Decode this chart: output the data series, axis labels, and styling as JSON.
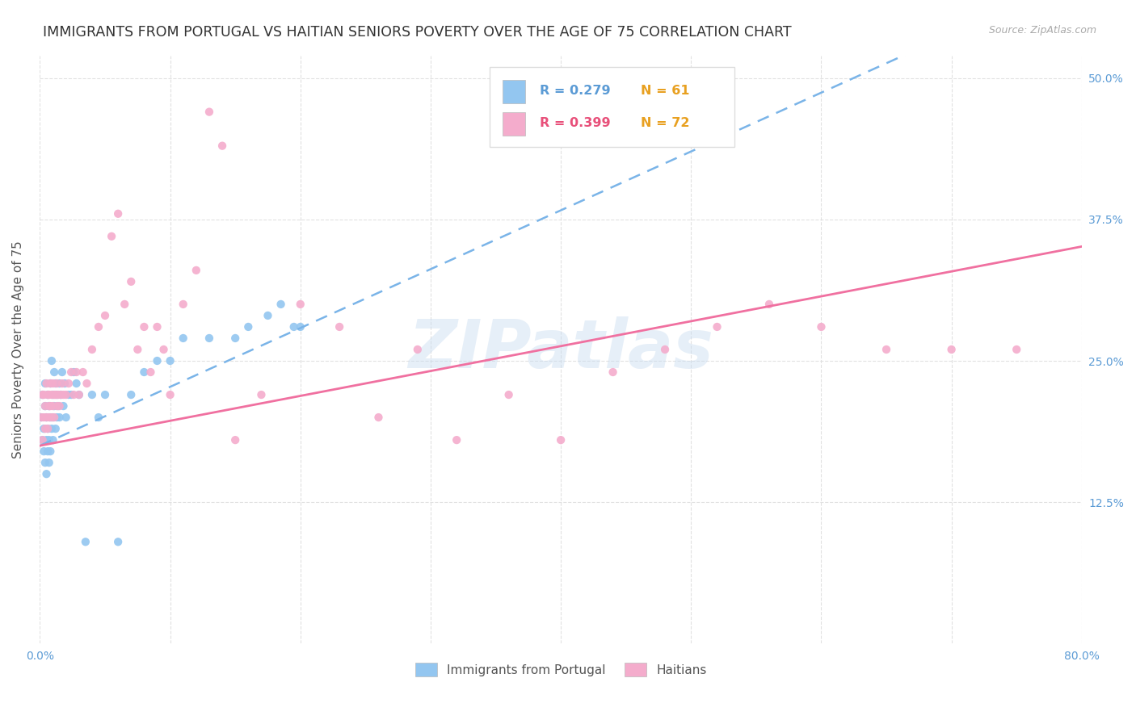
{
  "title": "IMMIGRANTS FROM PORTUGAL VS HAITIAN SENIORS POVERTY OVER THE AGE OF 75 CORRELATION CHART",
  "source": "Source: ZipAtlas.com",
  "ylabel": "Seniors Poverty Over the Age of 75",
  "xlim": [
    0.0,
    0.8
  ],
  "ylim": [
    0.0,
    0.52
  ],
  "ytick_vals": [
    0.125,
    0.25,
    0.375,
    0.5
  ],
  "ytick_labels": [
    "12.5%",
    "25.0%",
    "37.5%",
    "50.0%"
  ],
  "color_blue": "#93C6F0",
  "color_pink": "#F4ACCC",
  "trendline_blue_color": "#7AB4E8",
  "trendline_pink_color": "#F070A0",
  "watermark": "ZIPatlas",
  "title_fontsize": 12.5,
  "axis_label_fontsize": 11,
  "tick_fontsize": 10,
  "portugal_x": [
    0.001,
    0.002,
    0.002,
    0.003,
    0.003,
    0.004,
    0.004,
    0.004,
    0.005,
    0.005,
    0.005,
    0.006,
    0.006,
    0.006,
    0.007,
    0.007,
    0.007,
    0.008,
    0.008,
    0.008,
    0.009,
    0.009,
    0.01,
    0.01,
    0.01,
    0.011,
    0.011,
    0.012,
    0.012,
    0.013,
    0.013,
    0.014,
    0.015,
    0.015,
    0.016,
    0.017,
    0.018,
    0.019,
    0.02,
    0.022,
    0.024,
    0.026,
    0.028,
    0.03,
    0.035,
    0.04,
    0.045,
    0.05,
    0.06,
    0.07,
    0.08,
    0.09,
    0.1,
    0.11,
    0.13,
    0.15,
    0.16,
    0.175,
    0.185,
    0.195,
    0.2
  ],
  "portugal_y": [
    0.2,
    0.22,
    0.18,
    0.17,
    0.19,
    0.21,
    0.16,
    0.23,
    0.18,
    0.2,
    0.15,
    0.22,
    0.17,
    0.19,
    0.21,
    0.16,
    0.18,
    0.23,
    0.2,
    0.17,
    0.25,
    0.19,
    0.22,
    0.18,
    0.2,
    0.24,
    0.21,
    0.19,
    0.23,
    0.2,
    0.22,
    0.21,
    0.23,
    0.2,
    0.22,
    0.24,
    0.21,
    0.23,
    0.2,
    0.22,
    0.22,
    0.24,
    0.23,
    0.22,
    0.09,
    0.22,
    0.2,
    0.22,
    0.09,
    0.22,
    0.24,
    0.25,
    0.25,
    0.27,
    0.27,
    0.27,
    0.28,
    0.29,
    0.3,
    0.28,
    0.28
  ],
  "haiti_x": [
    0.001,
    0.002,
    0.002,
    0.003,
    0.003,
    0.004,
    0.004,
    0.005,
    0.005,
    0.006,
    0.006,
    0.007,
    0.007,
    0.007,
    0.008,
    0.008,
    0.009,
    0.009,
    0.01,
    0.01,
    0.011,
    0.011,
    0.012,
    0.013,
    0.013,
    0.014,
    0.015,
    0.016,
    0.017,
    0.018,
    0.02,
    0.022,
    0.024,
    0.026,
    0.028,
    0.03,
    0.033,
    0.036,
    0.04,
    0.045,
    0.05,
    0.055,
    0.06,
    0.065,
    0.07,
    0.075,
    0.08,
    0.085,
    0.09,
    0.095,
    0.1,
    0.11,
    0.12,
    0.13,
    0.14,
    0.15,
    0.17,
    0.2,
    0.23,
    0.26,
    0.29,
    0.32,
    0.36,
    0.4,
    0.44,
    0.48,
    0.52,
    0.56,
    0.6,
    0.65,
    0.7,
    0.75
  ],
  "haiti_y": [
    0.2,
    0.22,
    0.18,
    0.2,
    0.22,
    0.19,
    0.21,
    0.23,
    0.2,
    0.22,
    0.19,
    0.21,
    0.2,
    0.22,
    0.21,
    0.23,
    0.22,
    0.2,
    0.21,
    0.23,
    0.22,
    0.2,
    0.22,
    0.21,
    0.23,
    0.22,
    0.21,
    0.22,
    0.23,
    0.22,
    0.22,
    0.23,
    0.24,
    0.22,
    0.24,
    0.22,
    0.24,
    0.23,
    0.26,
    0.28,
    0.29,
    0.36,
    0.38,
    0.3,
    0.32,
    0.26,
    0.28,
    0.24,
    0.28,
    0.26,
    0.22,
    0.3,
    0.33,
    0.47,
    0.44,
    0.18,
    0.22,
    0.3,
    0.28,
    0.2,
    0.26,
    0.18,
    0.22,
    0.18,
    0.24,
    0.26,
    0.28,
    0.3,
    0.28,
    0.26,
    0.26,
    0.26
  ],
  "trendline_blue_slope": 0.52,
  "trendline_blue_intercept": 0.175,
  "trendline_pink_slope": 0.22,
  "trendline_pink_intercept": 0.175
}
